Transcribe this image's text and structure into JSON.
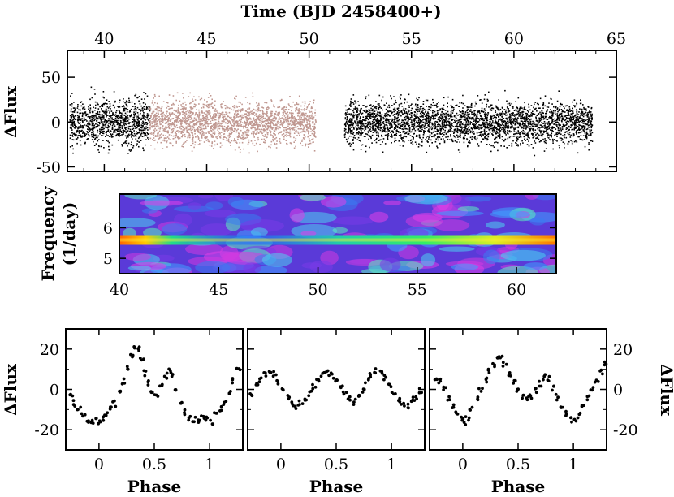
{
  "chart_data": [
    {
      "id": "lightcurve",
      "type": "scatter",
      "xlabel": "Time (BJD 2458400+)",
      "ylabel": "ΔFlux",
      "xlim": [
        38.2,
        65
      ],
      "ylim": [
        -55,
        80
      ],
      "xticks": [
        40,
        45,
        50,
        55,
        60,
        65
      ],
      "yticks": [
        50,
        0,
        -50
      ],
      "series": [
        {
          "segment": [
            38.3,
            42.2
          ],
          "amplitude": 28,
          "color": "#000000"
        },
        {
          "segment": [
            42.2,
            50.3
          ],
          "amplitude": 27,
          "color": "#c09891"
        },
        {
          "segment": [
            51.7,
            63.8
          ],
          "amplitude": 26,
          "color": "#000000"
        }
      ]
    },
    {
      "id": "spectrogram",
      "type": "heatmap",
      "ylabel": "Frequency",
      "ylabel2": "(1/day)",
      "xlim": [
        40,
        62
      ],
      "ylim": [
        4.5,
        7.1
      ],
      "xticks": [
        40,
        45,
        50,
        55,
        60
      ],
      "yticks": [
        6,
        5
      ],
      "ridge_frequency": 5.6
    },
    {
      "id": "phase-1",
      "type": "scatter",
      "xlabel": "Phase",
      "ylabel": "ΔFlux",
      "xlim": [
        -0.3,
        1.3
      ],
      "ylim": [
        -30,
        30
      ],
      "xticks": [
        0,
        0.5,
        1
      ],
      "yticks": [
        20,
        0,
        -20
      ],
      "points": [
        [
          -0.25,
          -3
        ],
        [
          -0.22,
          -7
        ],
        [
          -0.18,
          -10
        ],
        [
          -0.14,
          -13
        ],
        [
          -0.1,
          -15
        ],
        [
          -0.06,
          -16
        ],
        [
          -0.02,
          -14
        ],
        [
          0.0,
          -16
        ],
        [
          0.03,
          -15
        ],
        [
          0.06,
          -13
        ],
        [
          0.1,
          -10
        ],
        [
          0.14,
          -7
        ],
        [
          0.18,
          -2
        ],
        [
          0.22,
          4
        ],
        [
          0.26,
          10
        ],
        [
          0.3,
          17
        ],
        [
          0.33,
          21
        ],
        [
          0.36,
          20
        ],
        [
          0.39,
          15
        ],
        [
          0.42,
          8
        ],
        [
          0.45,
          3
        ],
        [
          0.48,
          -1
        ],
        [
          0.52,
          -2
        ],
        [
          0.56,
          2
        ],
        [
          0.6,
          7
        ],
        [
          0.63,
          9
        ],
        [
          0.66,
          7
        ],
        [
          0.7,
          0
        ],
        [
          0.74,
          -6
        ],
        [
          0.78,
          -11
        ],
        [
          0.82,
          -14
        ],
        [
          0.86,
          -15
        ],
        [
          0.9,
          -16
        ],
        [
          0.94,
          -14
        ],
        [
          0.98,
          -15
        ],
        [
          1.02,
          -16
        ],
        [
          1.06,
          -13
        ],
        [
          1.1,
          -10
        ],
        [
          1.14,
          -7
        ],
        [
          1.18,
          -2
        ],
        [
          1.22,
          4
        ],
        [
          1.26,
          10
        ]
      ]
    },
    {
      "id": "phase-2",
      "type": "scatter",
      "xlabel": "Phase",
      "xlim": [
        -0.3,
        1.3
      ],
      "ylim": [
        -30,
        30
      ],
      "xticks": [
        0,
        0.5,
        1
      ],
      "points": [
        [
          -0.26,
          -2
        ],
        [
          -0.22,
          2
        ],
        [
          -0.18,
          5
        ],
        [
          -0.14,
          8
        ],
        [
          -0.1,
          9
        ],
        [
          -0.06,
          8
        ],
        [
          -0.02,
          4
        ],
        [
          0.02,
          0
        ],
        [
          0.06,
          -4
        ],
        [
          0.1,
          -7
        ],
        [
          0.14,
          -8
        ],
        [
          0.18,
          -6
        ],
        [
          0.22,
          -4
        ],
        [
          0.26,
          -2
        ],
        [
          0.3,
          1
        ],
        [
          0.34,
          4
        ],
        [
          0.38,
          7
        ],
        [
          0.42,
          8
        ],
        [
          0.46,
          7
        ],
        [
          0.5,
          5
        ],
        [
          0.54,
          2
        ],
        [
          0.58,
          -2
        ],
        [
          0.62,
          -5
        ],
        [
          0.66,
          -6
        ],
        [
          0.7,
          -4
        ],
        [
          0.74,
          0
        ],
        [
          0.78,
          4
        ],
        [
          0.82,
          7
        ],
        [
          0.86,
          9
        ],
        [
          0.9,
          8
        ],
        [
          0.94,
          6
        ],
        [
          0.98,
          2
        ],
        [
          1.02,
          -2
        ],
        [
          1.06,
          -5
        ],
        [
          1.1,
          -7
        ],
        [
          1.14,
          -8
        ],
        [
          1.18,
          -5
        ],
        [
          1.22,
          -4
        ],
        [
          1.26,
          -1
        ]
      ]
    },
    {
      "id": "phase-3",
      "type": "scatter",
      "xlabel": "Phase",
      "ylabel": "ΔFlux",
      "xlim": [
        -0.3,
        1.3
      ],
      "ylim": [
        -30,
        30
      ],
      "xticks": [
        0,
        0.5,
        1
      ],
      "yticks": [
        20,
        0,
        -20
      ],
      "points": [
        [
          -0.25,
          6
        ],
        [
          -0.21,
          4
        ],
        [
          -0.17,
          0
        ],
        [
          -0.13,
          -4
        ],
        [
          -0.09,
          -8
        ],
        [
          -0.05,
          -12
        ],
        [
          -0.01,
          -15
        ],
        [
          0.01,
          -16
        ],
        [
          0.04,
          -14
        ],
        [
          0.08,
          -10
        ],
        [
          0.12,
          -5
        ],
        [
          0.16,
          0
        ],
        [
          0.2,
          5
        ],
        [
          0.24,
          9
        ],
        [
          0.28,
          12
        ],
        [
          0.31,
          15
        ],
        [
          0.34,
          15
        ],
        [
          0.38,
          12
        ],
        [
          0.42,
          8
        ],
        [
          0.46,
          4
        ],
        [
          0.5,
          0
        ],
        [
          0.54,
          -3
        ],
        [
          0.58,
          -5
        ],
        [
          0.62,
          -3
        ],
        [
          0.66,
          0
        ],
        [
          0.7,
          3
        ],
        [
          0.74,
          6
        ],
        [
          0.78,
          5
        ],
        [
          0.82,
          1
        ],
        [
          0.86,
          -4
        ],
        [
          0.9,
          -8
        ],
        [
          0.94,
          -12
        ],
        [
          0.98,
          -15
        ],
        [
          1.01,
          -16
        ],
        [
          1.05,
          -13
        ],
        [
          1.09,
          -8
        ],
        [
          1.13,
          -4
        ],
        [
          1.17,
          1
        ],
        [
          1.21,
          5
        ],
        [
          1.25,
          9
        ],
        [
          1.29,
          13
        ]
      ]
    }
  ]
}
